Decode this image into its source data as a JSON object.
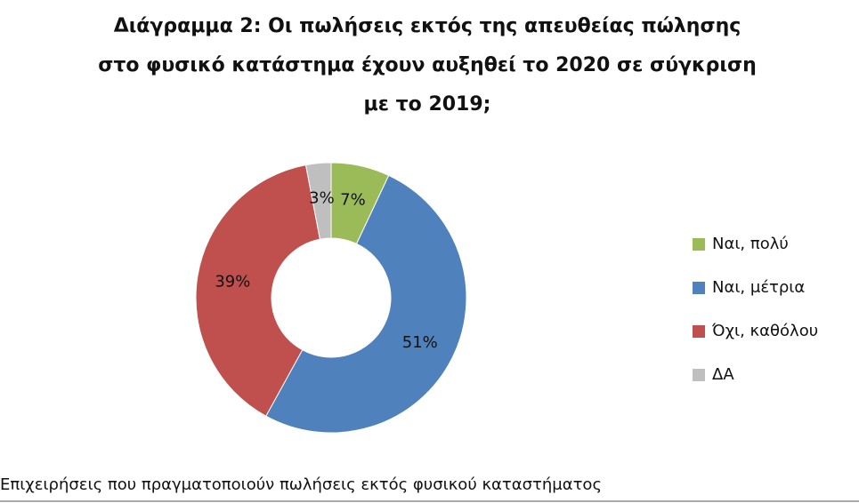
{
  "chart_data": {
    "type": "donut",
    "title": "Διάγραμμα 2: Οι πωλήσεις εκτός της απευθείας πώλησης στο φυσικό κατάστημα έχουν αυξηθεί το 2020 σε σύγκριση με το 2019;",
    "categories": [
      "Ναι, πολύ",
      "Ναι, μέτρια",
      "Όχι, καθόλου",
      "ΔΑ"
    ],
    "values": [
      7,
      51,
      39,
      3
    ],
    "value_labels": [
      "7%",
      "51%",
      "39%",
      "3%"
    ],
    "colors": [
      "#9bbb59",
      "#4f81bd",
      "#c0504d",
      "#bfbfbf"
    ],
    "note": "Επιχειρήσεις που πραγματοποιούν πωλήσεις εκτός φυσικού καταστήματος"
  }
}
